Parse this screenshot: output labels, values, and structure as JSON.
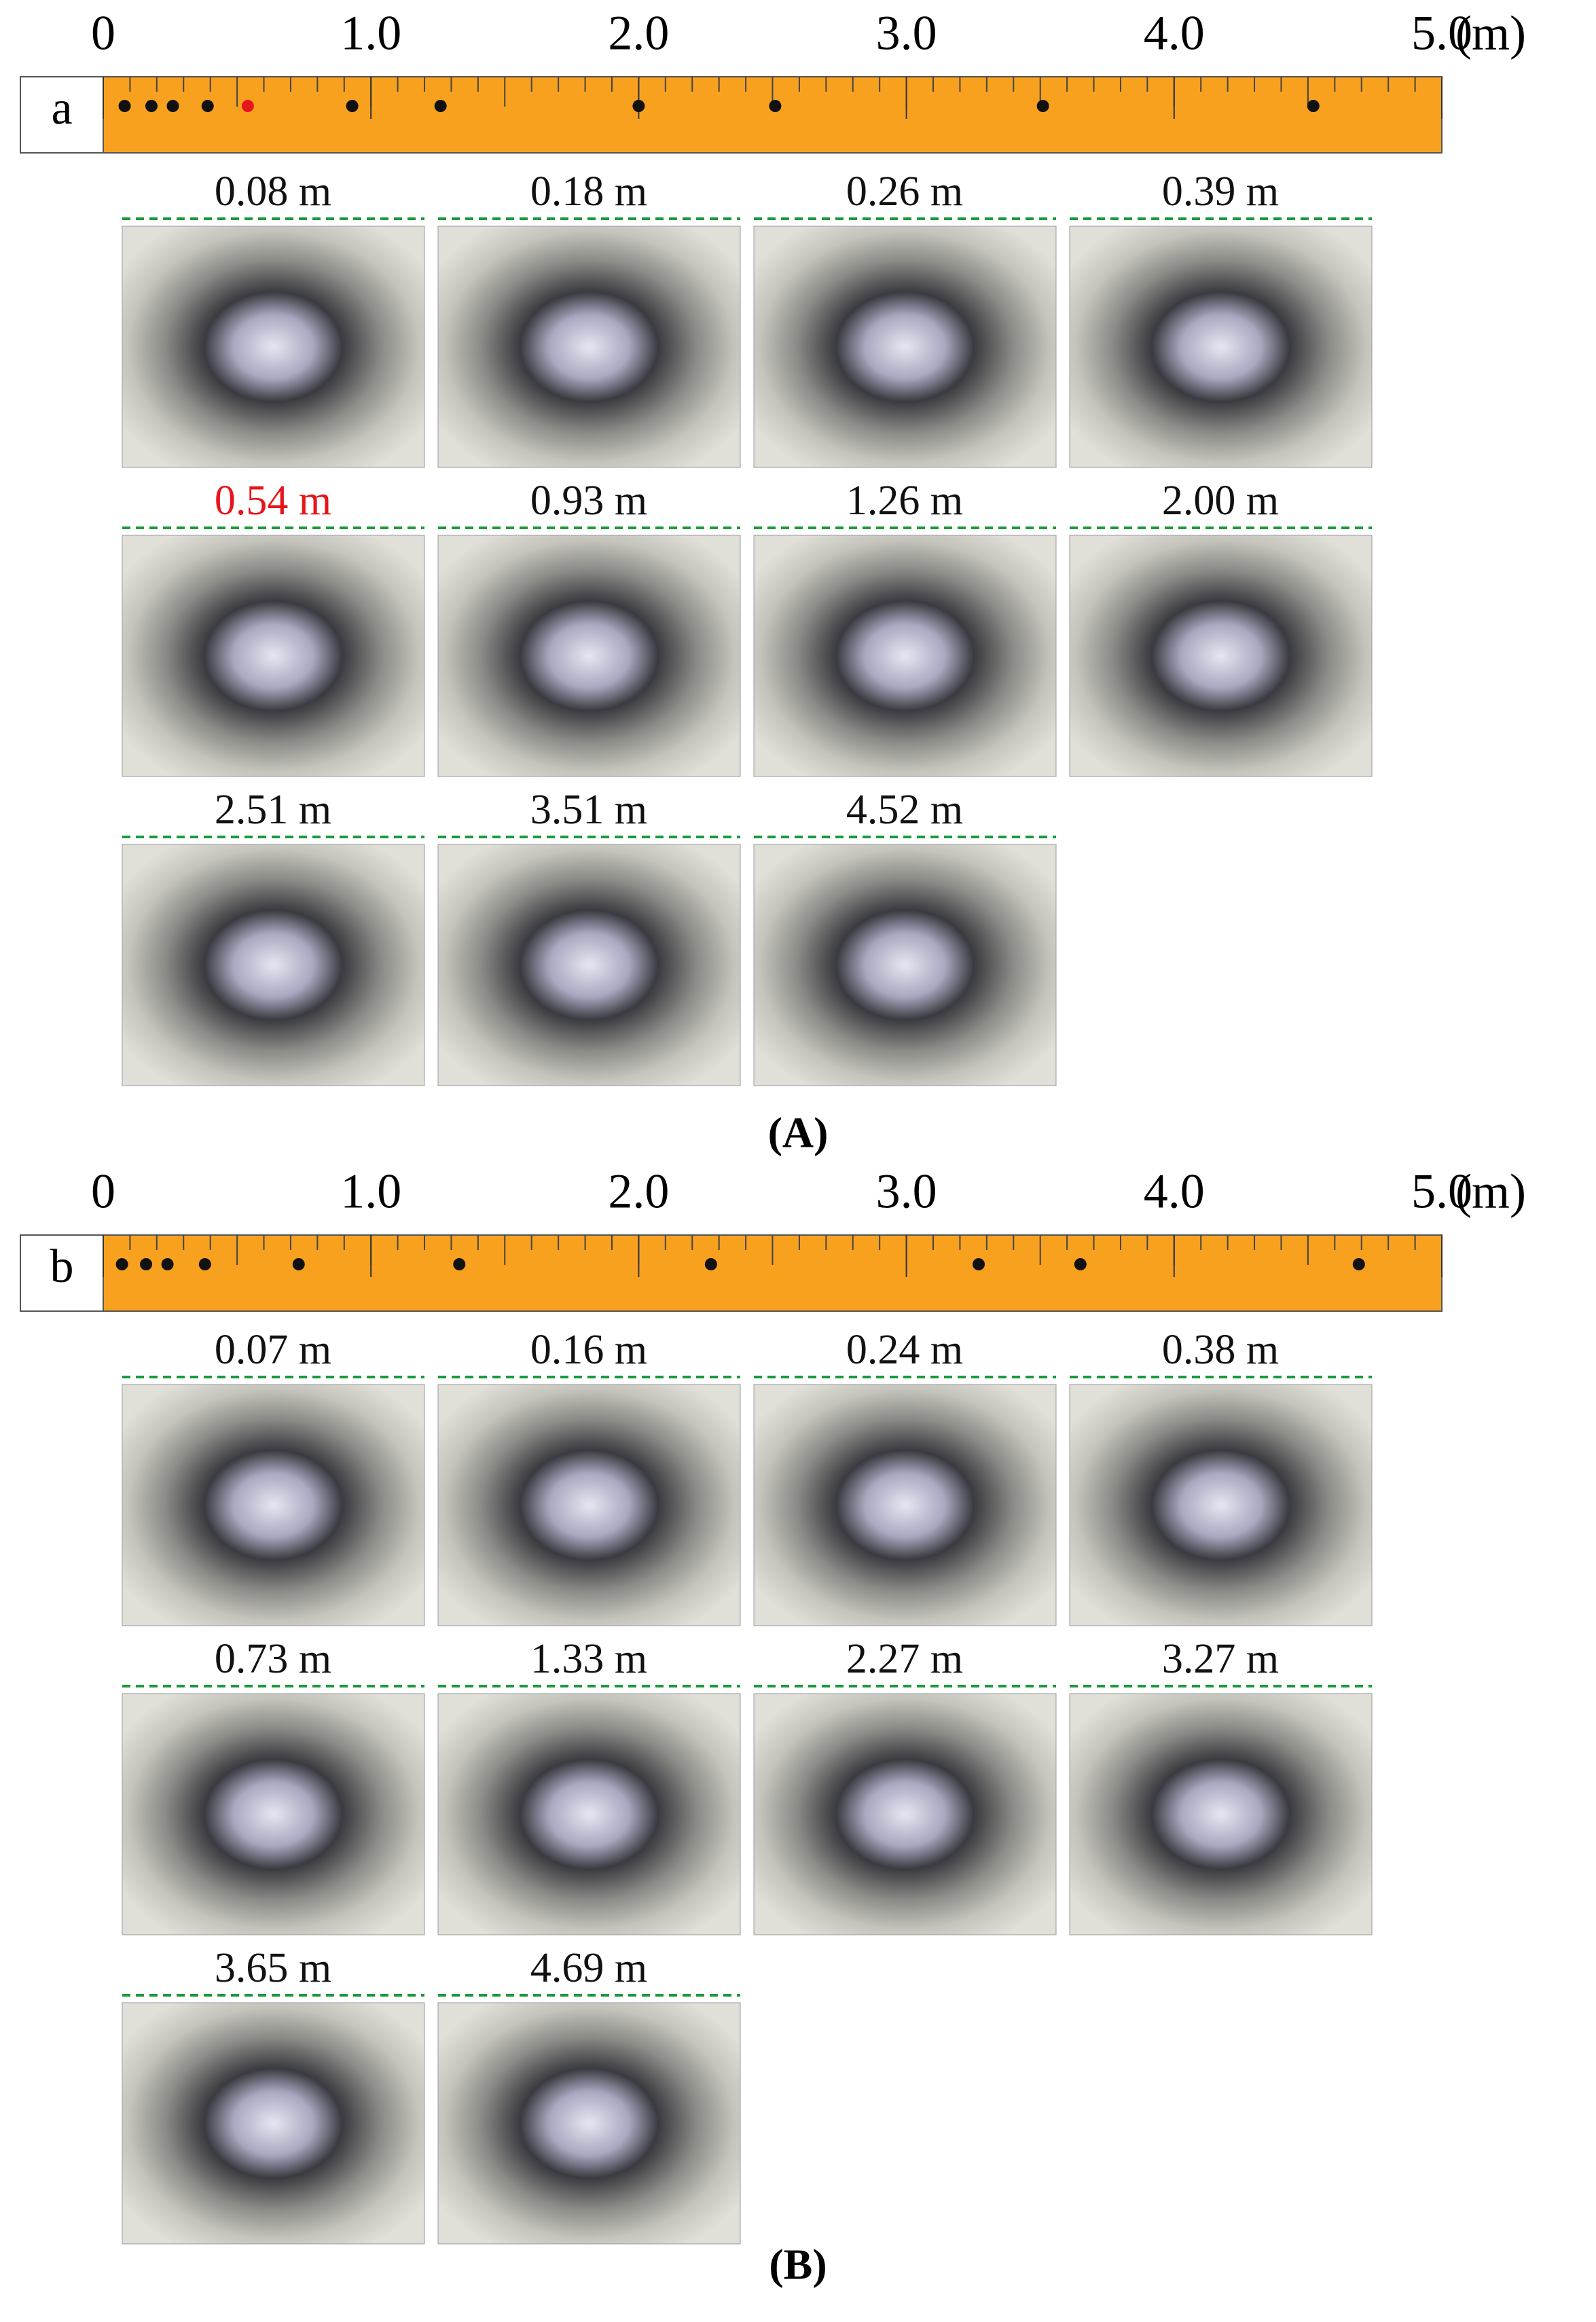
{
  "ruler_color": "#f7a11f",
  "marker_color": "#111111",
  "divider_color": "#1a9a3a",
  "panels": [
    {
      "label": "a",
      "caption": "(A)",
      "unit": "(m)",
      "xlim": [
        0,
        5
      ],
      "xticks": [
        0,
        {
          "value": 1,
          "label": "1.0"
        },
        {
          "value": 2,
          "label": "2.0"
        },
        {
          "value": 3,
          "label": "3.0"
        },
        {
          "value": 4,
          "label": "4.0"
        },
        {
          "value": 5,
          "label": "5.0"
        }
      ],
      "markers": [
        {
          "value": 0.08,
          "label": "0.08 m"
        },
        {
          "value": 0.18,
          "label": "0.18 m"
        },
        {
          "value": 0.26,
          "label": "0.26 m"
        },
        {
          "value": 0.39,
          "label": "0.39 m"
        },
        {
          "value": 0.54,
          "label": "0.54 m",
          "color": "#e8141b"
        },
        {
          "value": 0.93,
          "label": "0.93 m"
        },
        {
          "value": 1.26,
          "label": "1.26 m"
        },
        {
          "value": 2.0,
          "label": "2.00 m"
        },
        {
          "value": 2.51,
          "label": "2.51 m"
        },
        {
          "value": 3.51,
          "label": "3.51 m"
        },
        {
          "value": 4.52,
          "label": "4.52 m"
        }
      ]
    },
    {
      "label": "b",
      "caption": "(B)",
      "unit": "(m)",
      "xlim": [
        0,
        5
      ],
      "xticks": [
        0,
        {
          "value": 1,
          "label": "1.0"
        },
        {
          "value": 2,
          "label": "2.0"
        },
        {
          "value": 3,
          "label": "3.0"
        },
        {
          "value": 4,
          "label": "4.0"
        },
        {
          "value": 5,
          "label": "5.0"
        }
      ],
      "markers": [
        {
          "value": 0.07,
          "label": "0.07 m"
        },
        {
          "value": 0.16,
          "label": "0.16 m"
        },
        {
          "value": 0.24,
          "label": "0.24 m"
        },
        {
          "value": 0.38,
          "label": "0.38 m"
        },
        {
          "value": 0.73,
          "label": "0.73 m"
        },
        {
          "value": 1.33,
          "label": "1.33 m"
        },
        {
          "value": 2.27,
          "label": "2.27 m"
        },
        {
          "value": 3.27,
          "label": "3.27 m"
        },
        {
          "value": 3.65,
          "label": "3.65 m"
        },
        {
          "value": 4.69,
          "label": "4.69 m"
        }
      ]
    }
  ]
}
